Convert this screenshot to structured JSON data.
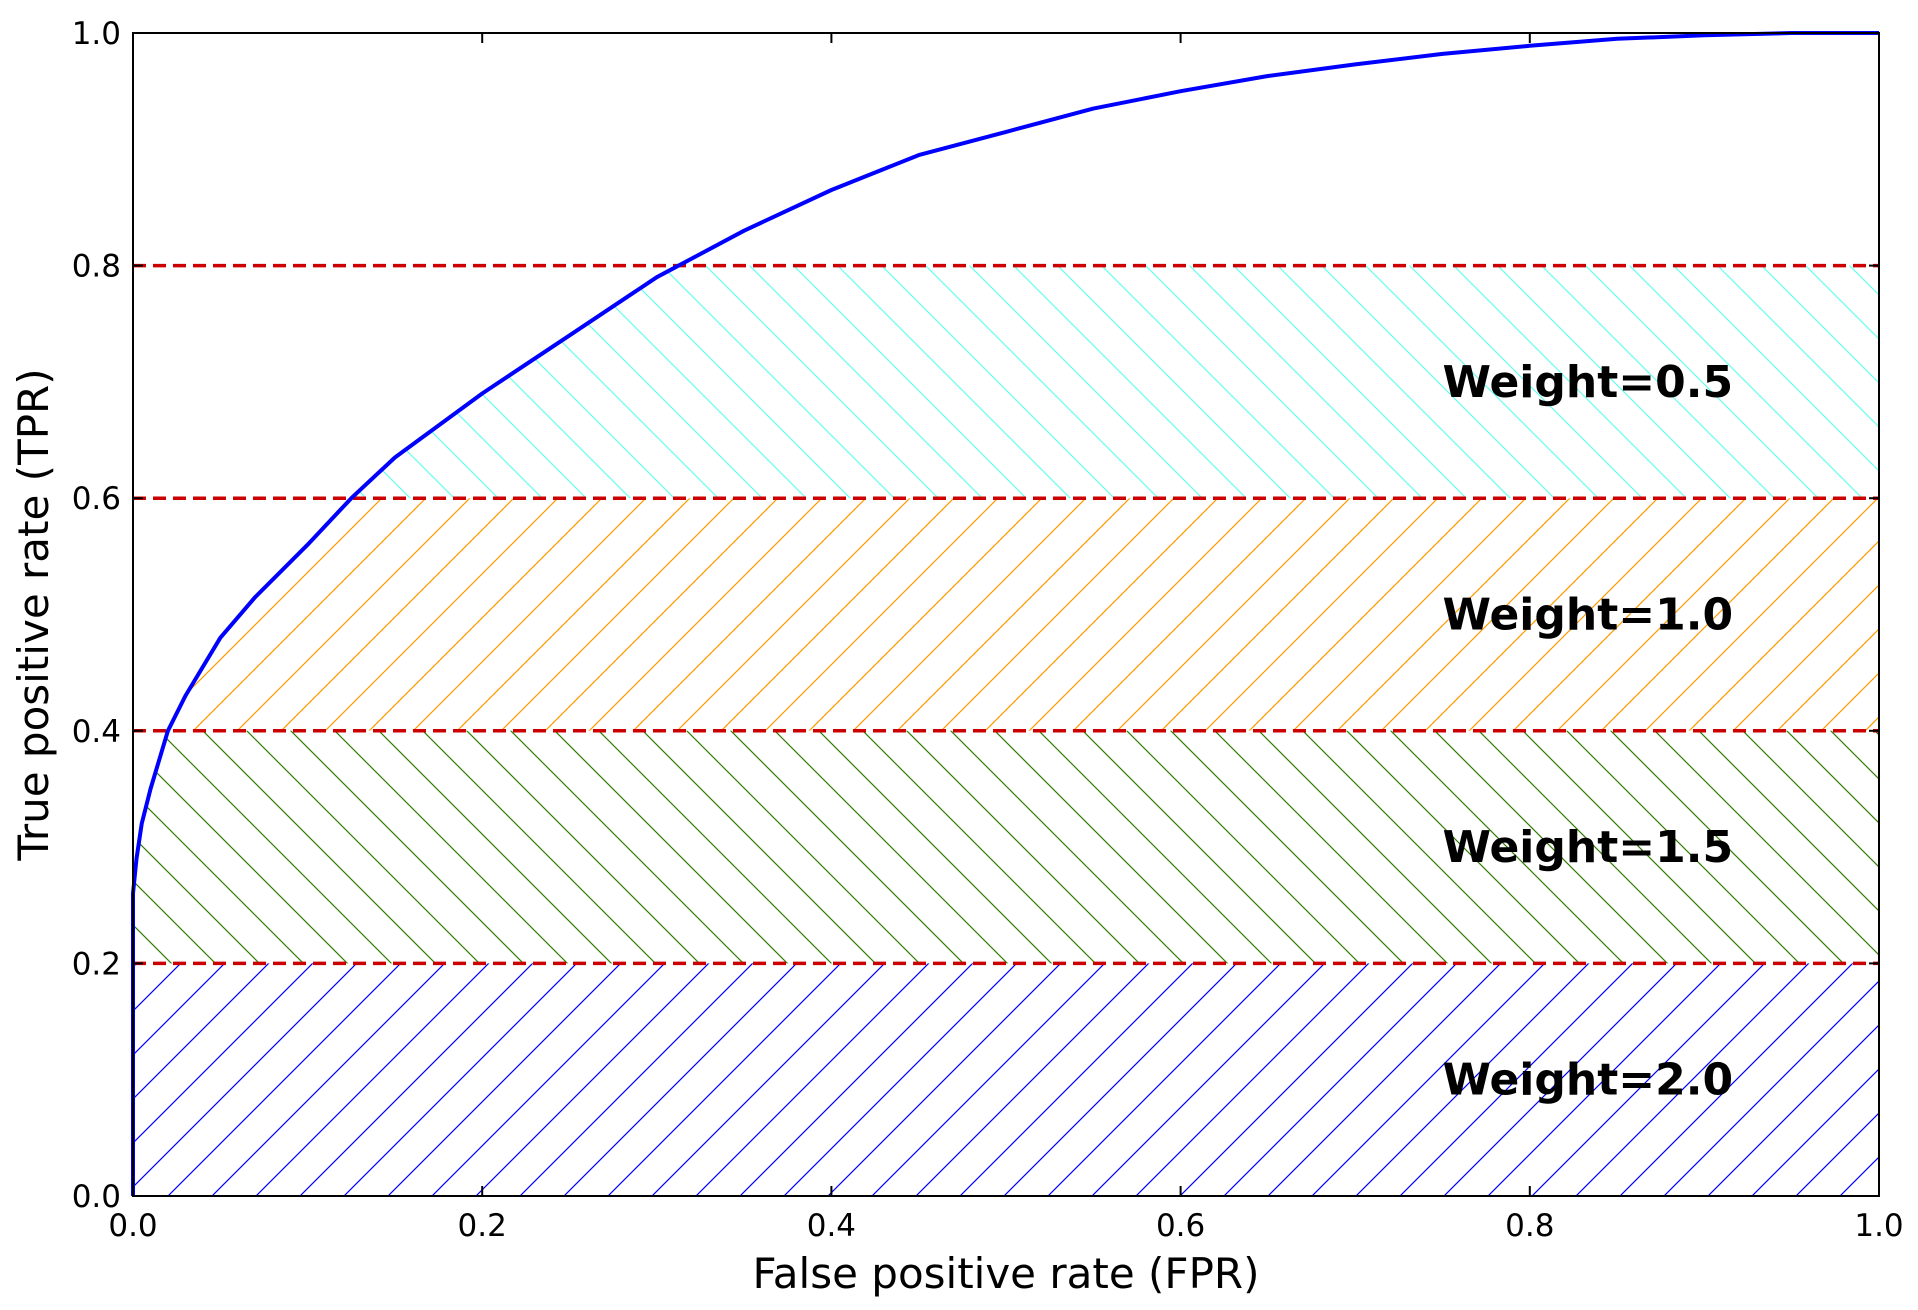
{
  "chart_data": {
    "type": "line",
    "xlabel": "False positive rate (FPR)",
    "ylabel": "True positive rate (TPR)",
    "xlim": [
      0.0,
      1.0
    ],
    "ylim": [
      0.0,
      1.0
    ],
    "x_ticks": [
      "0.0",
      "0.2",
      "0.4",
      "0.6",
      "0.8",
      "1.0"
    ],
    "y_ticks": [
      "0.0",
      "0.2",
      "0.4",
      "0.6",
      "0.8",
      "1.0"
    ],
    "grid": false,
    "series": [
      {
        "color": "#0000ff",
        "x": [
          0.0,
          0.0,
          0.002,
          0.005,
          0.01,
          0.015,
          0.02,
          0.03,
          0.05,
          0.07,
          0.1,
          0.125,
          0.15,
          0.2,
          0.25,
          0.3,
          0.35,
          0.4,
          0.45,
          0.5,
          0.55,
          0.6,
          0.65,
          0.7,
          0.75,
          0.8,
          0.85,
          0.9,
          0.95,
          1.0
        ],
        "y": [
          0.0,
          0.26,
          0.29,
          0.32,
          0.35,
          0.375,
          0.4,
          0.43,
          0.48,
          0.515,
          0.56,
          0.6,
          0.635,
          0.69,
          0.74,
          0.79,
          0.83,
          0.865,
          0.895,
          0.915,
          0.935,
          0.95,
          0.963,
          0.973,
          0.982,
          0.989,
          0.995,
          0.998,
          1.0,
          1.0
        ]
      }
    ],
    "thresholds": {
      "color": "#cc0000",
      "y": [
        0.2,
        0.4,
        0.6,
        0.8
      ]
    },
    "bands": [
      {
        "label": "Weight=2.0",
        "y_range": [
          0.0,
          0.2
        ],
        "hatch": "forward-diagonal",
        "color": "#0000ff"
      },
      {
        "label": "Weight=1.5",
        "y_range": [
          0.2,
          0.4
        ],
        "hatch": "back-diagonal",
        "color": "#2e7d00"
      },
      {
        "label": "Weight=1.0",
        "y_range": [
          0.4,
          0.6
        ],
        "hatch": "forward-diagonal",
        "color": "#ff9900"
      },
      {
        "label": "Weight=0.5",
        "y_range": [
          0.6,
          0.8
        ],
        "hatch": "back-diagonal",
        "color": "#66ffee"
      }
    ]
  }
}
